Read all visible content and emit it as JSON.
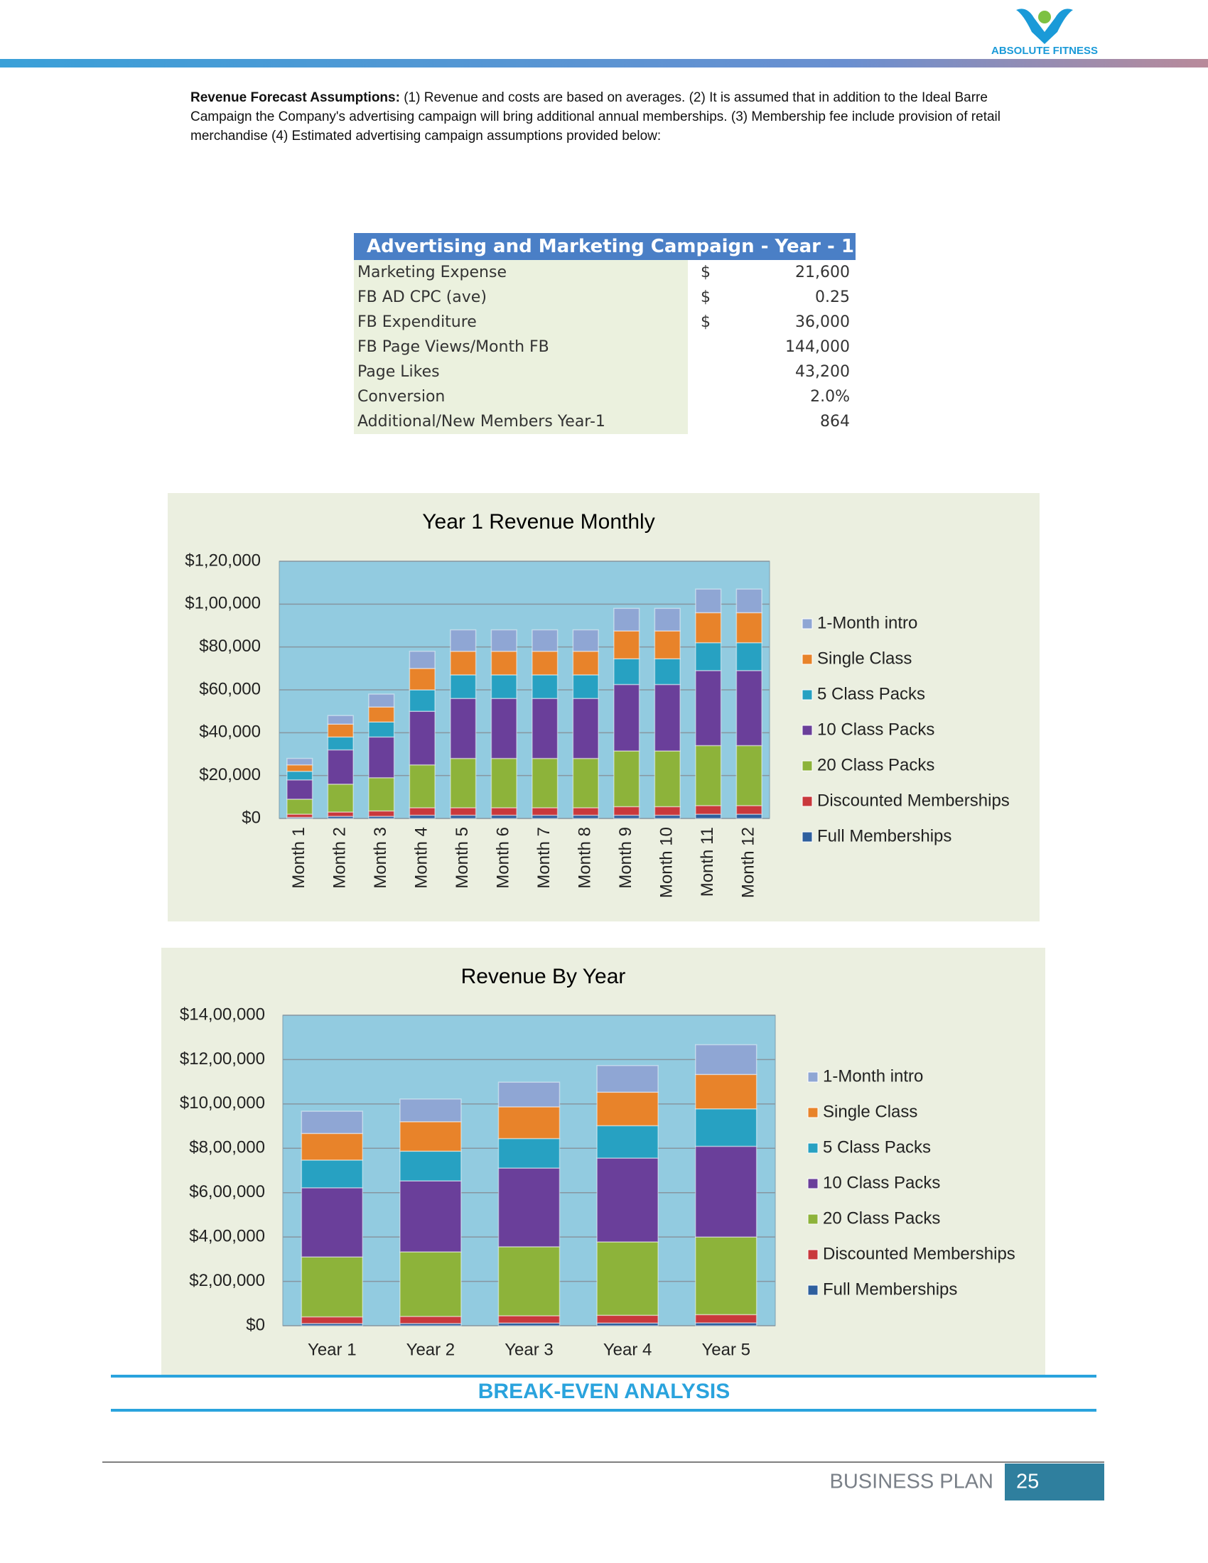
{
  "header": {
    "logo_text": "ABSOLUTE FITNESS"
  },
  "intro": {
    "label": "Revenue Forecast Assumptions:",
    "text": "(1) Revenue and costs are based on averages. (2) It is assumed that in addition to the Ideal Barre Campaign the Company's advertising campaign will bring additional annual memberships. (3) Membership fee include provision of retail merchandise  (4) Estimated advertising campaign assumptions provided below:"
  },
  "table": {
    "title": "Advertising and Marketing Campaign - Year - 1",
    "rows": [
      {
        "label": "Marketing Expense",
        "currency": "$",
        "value": "21,600"
      },
      {
        "label": "FB AD CPC (ave)",
        "currency": "$",
        "value": "0.25"
      },
      {
        "label": "FB Expenditure",
        "currency": "$",
        "value": "36,000"
      },
      {
        "label": "FB Page Views/Month FB",
        "value": "144,000"
      },
      {
        "label": "Page Likes",
        "value": "43,200"
      },
      {
        "label": "Conversion",
        "value": "2.0%"
      },
      {
        "label": "Additional/New Members Year-1",
        "value": "864"
      }
    ]
  },
  "chart_data": [
    {
      "type": "stacked_bar",
      "title": "Year 1 Revenue Monthly",
      "categories": [
        "Month 1",
        "Month 2",
        "Month 3",
        "Month 4",
        "Month 5",
        "Month 6",
        "Month 7",
        "Month 8",
        "Month 9",
        "Month 10",
        "Month 11",
        "Month 12"
      ],
      "series": [
        {
          "name": "Full Memberships",
          "color": "#2e5f9e",
          "values": [
            500,
            1000,
            1000,
            1500,
            1500,
            1500,
            1500,
            1500,
            1500,
            1500,
            2000,
            2000
          ]
        },
        {
          "name": "Discounted Memberships",
          "color": "#c9383c",
          "values": [
            1500,
            2000,
            2500,
            3500,
            3500,
            3500,
            3500,
            3500,
            4000,
            4000,
            4000,
            4000
          ]
        },
        {
          "name": "20 Class Packs",
          "color": "#8db33a",
          "values": [
            7000,
            13000,
            15500,
            20000,
            23000,
            23000,
            23000,
            23000,
            26000,
            26000,
            28000,
            28000
          ]
        },
        {
          "name": "10 Class Packs",
          "color": "#6a3f9a",
          "values": [
            9000,
            16000,
            19000,
            25000,
            28000,
            28000,
            28000,
            28000,
            31000,
            31000,
            35000,
            35000
          ]
        },
        {
          "name": "5 Class Packs",
          "color": "#27a1c2",
          "values": [
            4000,
            6000,
            7000,
            10000,
            11000,
            11000,
            11000,
            11000,
            12000,
            12000,
            13000,
            13000
          ]
        },
        {
          "name": "Single Class",
          "color": "#e8832a",
          "values": [
            3000,
            6000,
            7000,
            10000,
            11000,
            11000,
            11000,
            11000,
            13000,
            13000,
            14000,
            14000
          ]
        },
        {
          "name": "1-Month intro",
          "color": "#8fa6d4",
          "values": [
            3000,
            4000,
            6000,
            8000,
            10000,
            10000,
            10000,
            10000,
            10500,
            10500,
            11000,
            11000
          ]
        }
      ],
      "ylim": [
        0,
        120000
      ],
      "yticks": [
        {
          "value": 0,
          "label": "$0"
        },
        {
          "value": 20000,
          "label": "$20,000"
        },
        {
          "value": 40000,
          "label": "$40,000"
        },
        {
          "value": 60000,
          "label": "$60,000"
        },
        {
          "value": 80000,
          "label": "$80,000"
        },
        {
          "value": 100000,
          "label": "$1,00,000"
        },
        {
          "value": 120000,
          "label": "$1,20,000"
        }
      ],
      "grid": true,
      "legend": "right"
    },
    {
      "type": "stacked_bar",
      "title": "Revenue By Year",
      "categories": [
        "Year 1",
        "Year 2",
        "Year 3",
        "Year 4",
        "Year 5"
      ],
      "series": [
        {
          "name": "Full Memberships",
          "color": "#2e5f9e",
          "values": [
            10000,
            10000,
            12000,
            12000,
            13000
          ]
        },
        {
          "name": "Discounted Memberships",
          "color": "#c9383c",
          "values": [
            30000,
            32000,
            33000,
            35000,
            37000
          ]
        },
        {
          "name": "20 Class Packs",
          "color": "#8db33a",
          "values": [
            270000,
            291000,
            311000,
            331000,
            350000
          ]
        },
        {
          "name": "10 Class Packs",
          "color": "#6a3f9a",
          "values": [
            312000,
            320000,
            355000,
            378000,
            409000
          ]
        },
        {
          "name": "5 Class Packs",
          "color": "#27a1c2",
          "values": [
            125000,
            134000,
            133000,
            146000,
            169000
          ]
        },
        {
          "name": "Single Class",
          "color": "#e8832a",
          "values": [
            120000,
            133000,
            143000,
            151000,
            155000
          ]
        },
        {
          "name": "1-Month intro",
          "color": "#8fa6d4",
          "values": [
            100000,
            102000,
            111000,
            120000,
            134000
          ]
        }
      ],
      "ylim": [
        0,
        1400000
      ],
      "yticks": [
        {
          "value": 0,
          "label": "$0"
        },
        {
          "value": 200000,
          "label": "$2,00,000"
        },
        {
          "value": 400000,
          "label": "$4,00,000"
        },
        {
          "value": 600000,
          "label": "$6,00,000"
        },
        {
          "value": 800000,
          "label": "$8,00,000"
        },
        {
          "value": 1000000,
          "label": "$10,00,000"
        },
        {
          "value": 1200000,
          "label": "$12,00,000"
        },
        {
          "value": 1400000,
          "label": "$14,00,000"
        }
      ],
      "grid": true,
      "legend": "right"
    }
  ],
  "section_heading": "BREAK-EVEN ANALYSIS",
  "footer": {
    "label": "BUSINESS PLAN",
    "page": "25"
  }
}
